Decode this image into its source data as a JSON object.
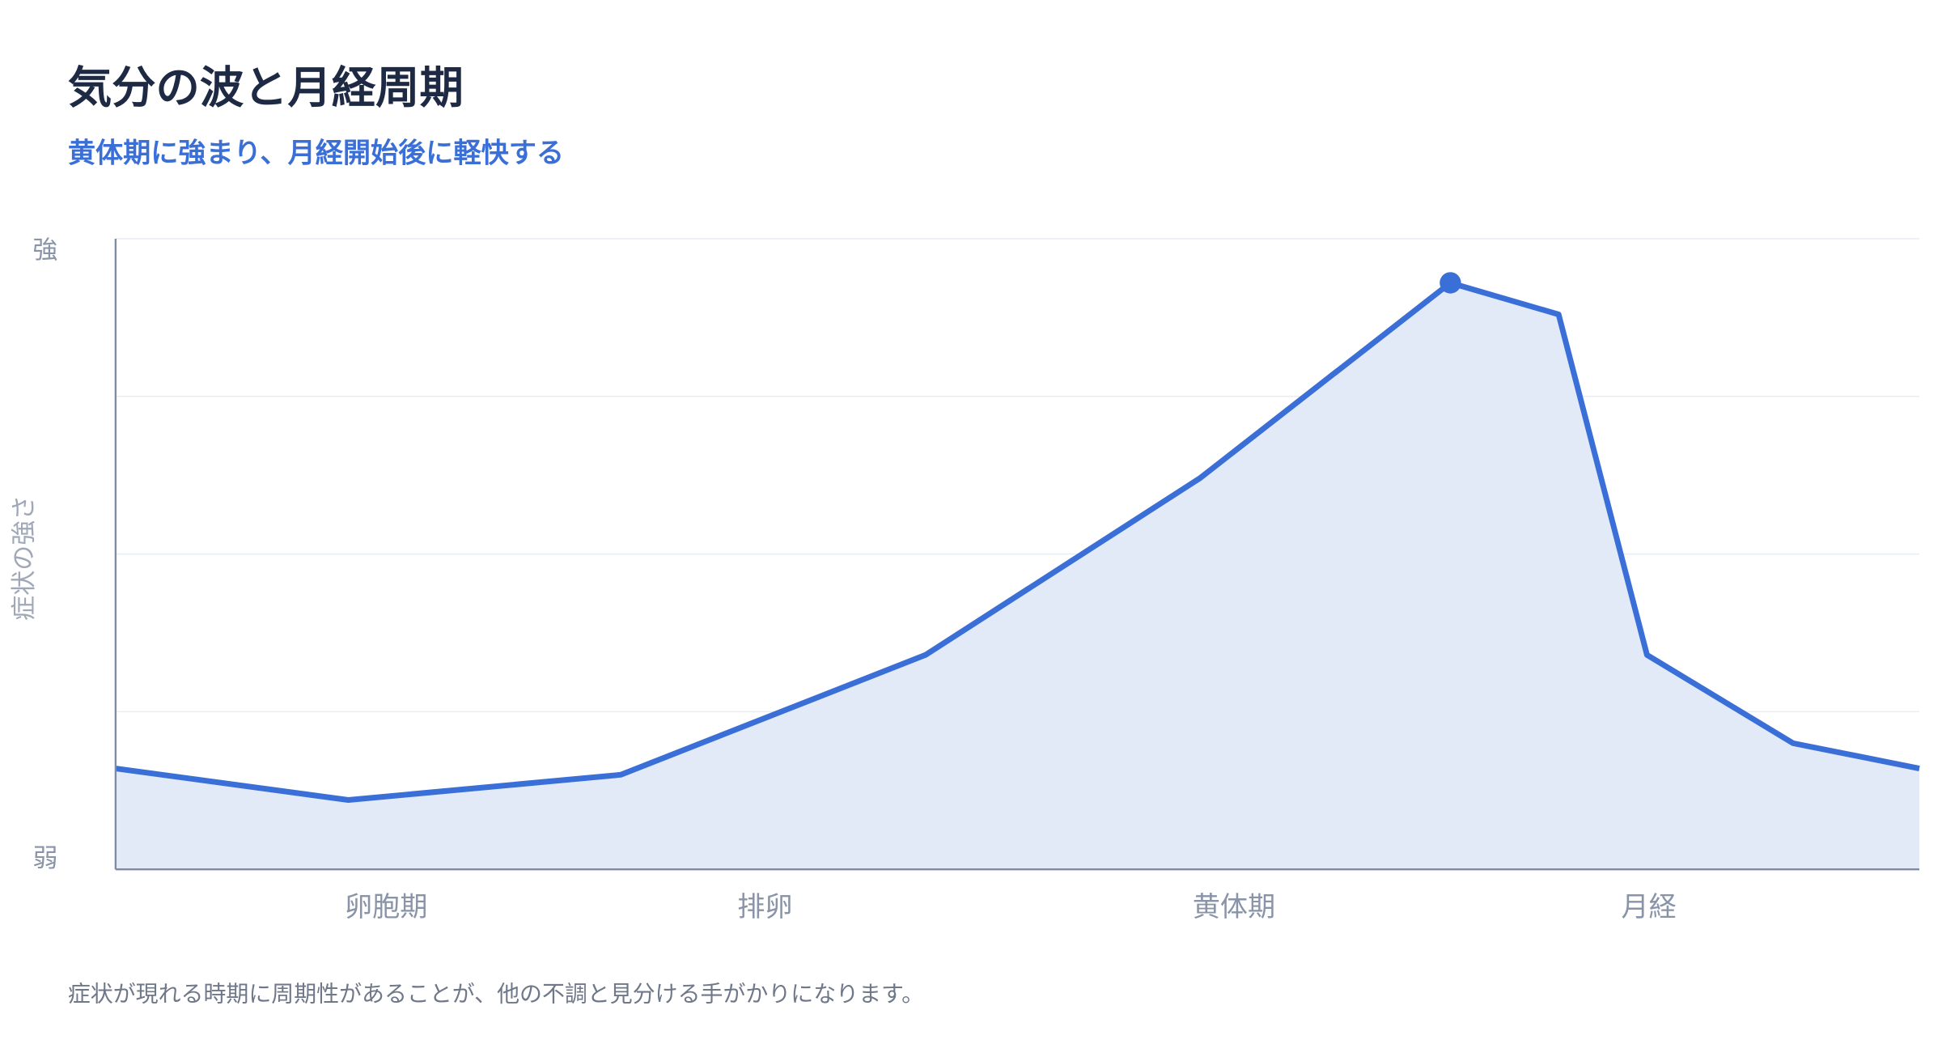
{
  "chart_data": {
    "type": "line",
    "title": "気分の波と月経周期",
    "subtitle": "黄体期に強まり、月経開始後に軽快する",
    "y_label": "症状の強さ",
    "footnote": "症状が現れる時期に周期性があることが、他の不調と見分ける手がかりになります。",
    "x": [
      0,
      12.9,
      28.0,
      44.9,
      60.1,
      74.0,
      80.0,
      84.9,
      93.0,
      100
    ],
    "values": [
      16,
      11,
      15,
      34,
      62,
      93,
      88,
      34,
      20,
      16
    ],
    "color": "#3a6fd8",
    "fill": "#e2eaf8",
    "marker_index": 5,
    "xlim": [
      0,
      100
    ],
    "xticks": [
      {
        "value": 15,
        "label": "卵胞期"
      },
      {
        "value": 36,
        "label": "排卵"
      },
      {
        "value": 62,
        "label": "黄体期"
      },
      {
        "value": 85,
        "label": "月経"
      }
    ],
    "ylim": [
      0,
      100
    ],
    "yticks": [
      {
        "value": 0,
        "label": "弱"
      },
      {
        "value": 100,
        "label": "強"
      }
    ],
    "grid_lines": [
      25,
      50,
      75,
      100
    ]
  }
}
